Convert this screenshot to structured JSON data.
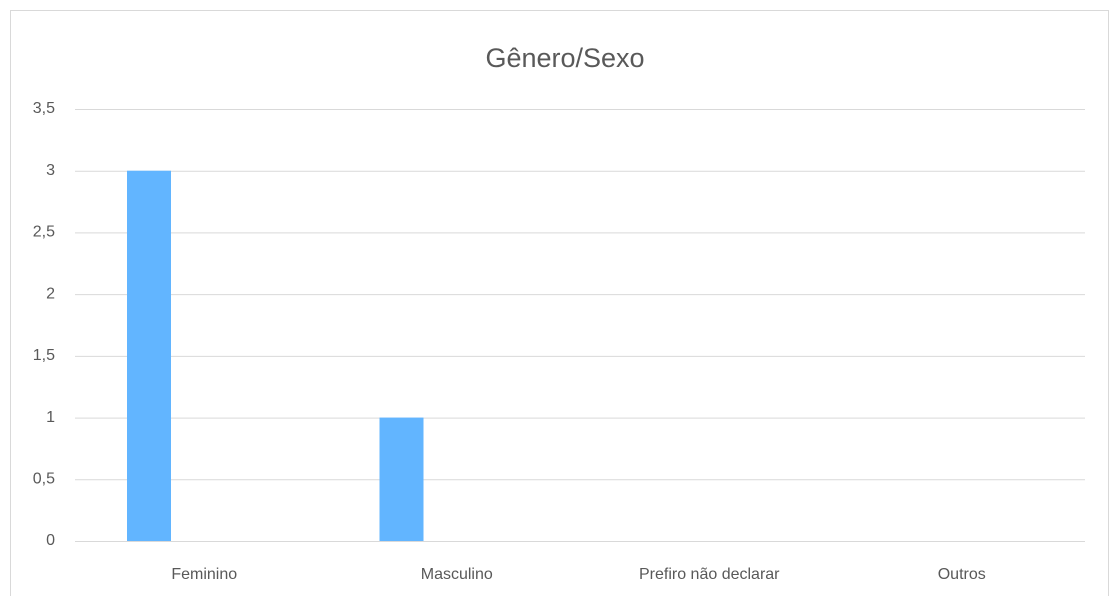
{
  "chart_data": {
    "type": "bar",
    "title": "Gênero/Sexo",
    "categories": [
      "Feminino",
      "Masculino",
      "Prefiro não declarar",
      "Outros"
    ],
    "values": [
      3,
      1,
      0,
      0
    ],
    "color": "#62b5ff",
    "ylim": [
      0,
      3.5
    ],
    "yticks": [
      0,
      {
        "value": 0.5,
        "label": "0,5"
      },
      1,
      {
        "value": 1.5,
        "label": "1,5"
      },
      2,
      {
        "value": 2.5,
        "label": "2,5"
      },
      3,
      {
        "value": 3.5,
        "label": "3,5"
      }
    ],
    "grid": true
  }
}
